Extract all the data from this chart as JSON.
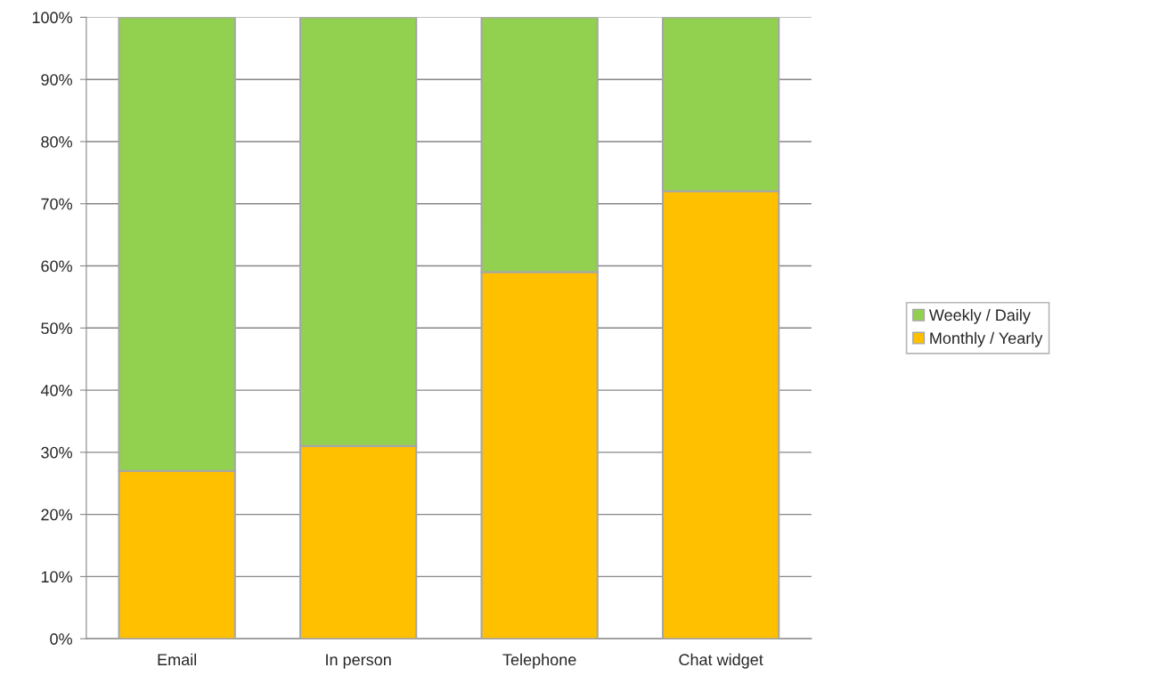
{
  "chart_data": {
    "type": "bar",
    "stacked": true,
    "categories": [
      "Email",
      "In person",
      "Telephone",
      "Chat widget"
    ],
    "series": [
      {
        "name": "Monthly / Yearly",
        "color": "#ffc000",
        "values": [
          27,
          31,
          59,
          72
        ]
      },
      {
        "name": "Weekly / Daily",
        "color": "#92d050",
        "values": [
          73,
          69,
          41,
          28
        ]
      }
    ],
    "ylim": [
      0,
      100
    ],
    "yticks": [
      {
        "value": 0,
        "label": "0%"
      },
      {
        "value": 10,
        "label": "10%"
      },
      {
        "value": 20,
        "label": "20%"
      },
      {
        "value": 30,
        "label": "30%"
      },
      {
        "value": 40,
        "label": "40%"
      },
      {
        "value": 50,
        "label": "50%"
      },
      {
        "value": 60,
        "label": "60%"
      },
      {
        "value": 70,
        "label": "70%"
      },
      {
        "value": 80,
        "label": "80%"
      },
      {
        "value": 90,
        "label": "90%"
      },
      {
        "value": 100,
        "label": "100%"
      }
    ],
    "grid": "y",
    "legend": "right"
  }
}
